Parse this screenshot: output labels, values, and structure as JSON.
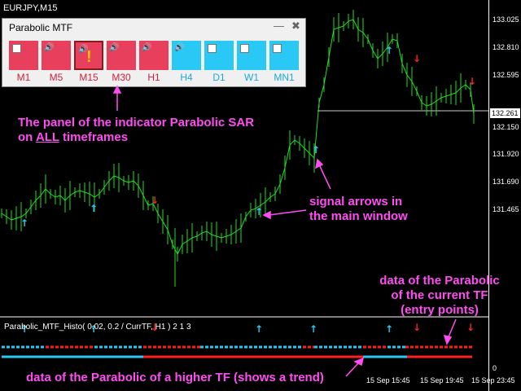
{
  "symbol": "EURJPY,M15",
  "panel": {
    "title": "Parabolic MTF",
    "minimize": "—",
    "close": "✖",
    "timeframes": [
      {
        "label": "M1",
        "state": "down",
        "icon": "checkbox-icon"
      },
      {
        "label": "M5",
        "state": "down",
        "icon": "speaker-icon"
      },
      {
        "label": "M15",
        "state": "down",
        "icon": "speaker-icon",
        "alert": "!"
      },
      {
        "label": "M30",
        "state": "down",
        "icon": "speaker-icon"
      },
      {
        "label": "H1",
        "state": "down",
        "icon": "speaker-icon"
      },
      {
        "label": "H4",
        "state": "up",
        "icon": "speaker-icon"
      },
      {
        "label": "D1",
        "state": "up",
        "icon": "checkbox-icon"
      },
      {
        "label": "W1",
        "state": "up",
        "icon": "checkbox-icon"
      },
      {
        "label": "MN1",
        "state": "up",
        "icon": "checkbox-icon"
      }
    ],
    "colors": {
      "down": "#e8405c",
      "up": "#2ac8f5"
    }
  },
  "price_axis": [
    "133.025",
    "132.810",
    "132.595",
    "132.261",
    "132.150",
    "131.920",
    "131.690",
    "131.465",
    "0"
  ],
  "current_price": "132.261",
  "time_axis": [
    "15 Sep 15:45",
    "15 Sep 19:45",
    "15 Sep 23:45"
  ],
  "indicator_label": "Parabolic_MTF_Histo( 0.02, 0.2 / CurrTF, H1 ) 2 1 3",
  "annotations": {
    "panel": [
      "The panel of the indicator Parabolic SAR",
      "on ALL timeframes"
    ],
    "panel_underline": "ALL",
    "signals": [
      "signal arrows in",
      "the main window"
    ],
    "current_tf": [
      "data of the Parabolic",
      "of the current TF",
      "(entry points)"
    ],
    "higher_tf": "data of the Parabolic of a higher TF (shows a trend)"
  },
  "chart_colors": {
    "bars": "#22dd22",
    "up_arrow": "#2ac8f5",
    "down_arrow": "#ff2020"
  }
}
